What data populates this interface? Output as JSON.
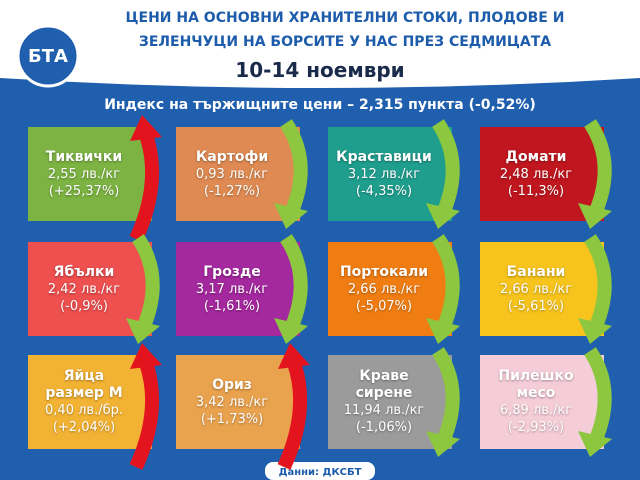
{
  "header": {
    "logo": "БТА",
    "title_lines": [
      "ЦЕНИ НА ОСНОВНИ ХРАНИТЕЛНИ СТОКИ, ПЛОДОВЕ И",
      "ЗЕЛЕНЧУЦИ НА БОРСИТЕ У НАС ПРЕЗ СЕДМИЦАТА"
    ],
    "date": "10-14 ноември",
    "subtitle": "Индекс на тържищните цени – 2,315 пункта (-0,52%)"
  },
  "cards": [
    {
      "name": "Тиквички",
      "price": "2,55 лв./кг",
      "change": "(+25,37%)",
      "color": "#7cb342",
      "trend": "up"
    },
    {
      "name": "Картофи",
      "price": "0,93 лв./кг",
      "change": "(-1,27%)",
      "color": "#de8a52",
      "trend": "down"
    },
    {
      "name": "Краставици",
      "price": "3,12 лв./кг",
      "change": "(-4,35%)",
      "color": "#1f9e8e",
      "trend": "down"
    },
    {
      "name": "Домати",
      "price": "2,48 лв./кг",
      "change": "(-11,3%)",
      "color": "#c0161f",
      "trend": "down"
    },
    {
      "name": "Ябълки",
      "price": "2,42 лв./кг",
      "change": "(-0,9%)",
      "color": "#ee4f4f",
      "trend": "down"
    },
    {
      "name": "Грозде",
      "price": "3,17 лв./кг",
      "change": "(-1,61%)",
      "color": "#a4289e",
      "trend": "down"
    },
    {
      "name": "Портокали",
      "price": "2,66 лв./кг",
      "change": "(-5,07%)",
      "color": "#f07d12",
      "trend": "down"
    },
    {
      "name": "Банани",
      "price": "2,66 лв./кг",
      "change": "(-5,61%)",
      "color": "#f6c41c",
      "trend": "down"
    },
    {
      "name": "Яйца размер М",
      "price": "0,40 лв./бр.",
      "change": "(+2,04%)",
      "color": "#f2b233",
      "trend": "up"
    },
    {
      "name": "Ориз",
      "price": "3,42 лв./кг",
      "change": "(+1,73%)",
      "color": "#e9a24e",
      "trend": "up"
    },
    {
      "name": "Краве сирене",
      "price": "11,94 лв./кг",
      "change": "(-1,06%)",
      "color": "#9b9b9b",
      "trend": "down"
    },
    {
      "name": "Пилешко месо",
      "price": "6,89 лв./кг",
      "change": "(-2,93%)",
      "color": "#f5cdd8",
      "trend": "down"
    }
  ],
  "footer": {
    "source": "Данни: ДКСБТ"
  }
}
